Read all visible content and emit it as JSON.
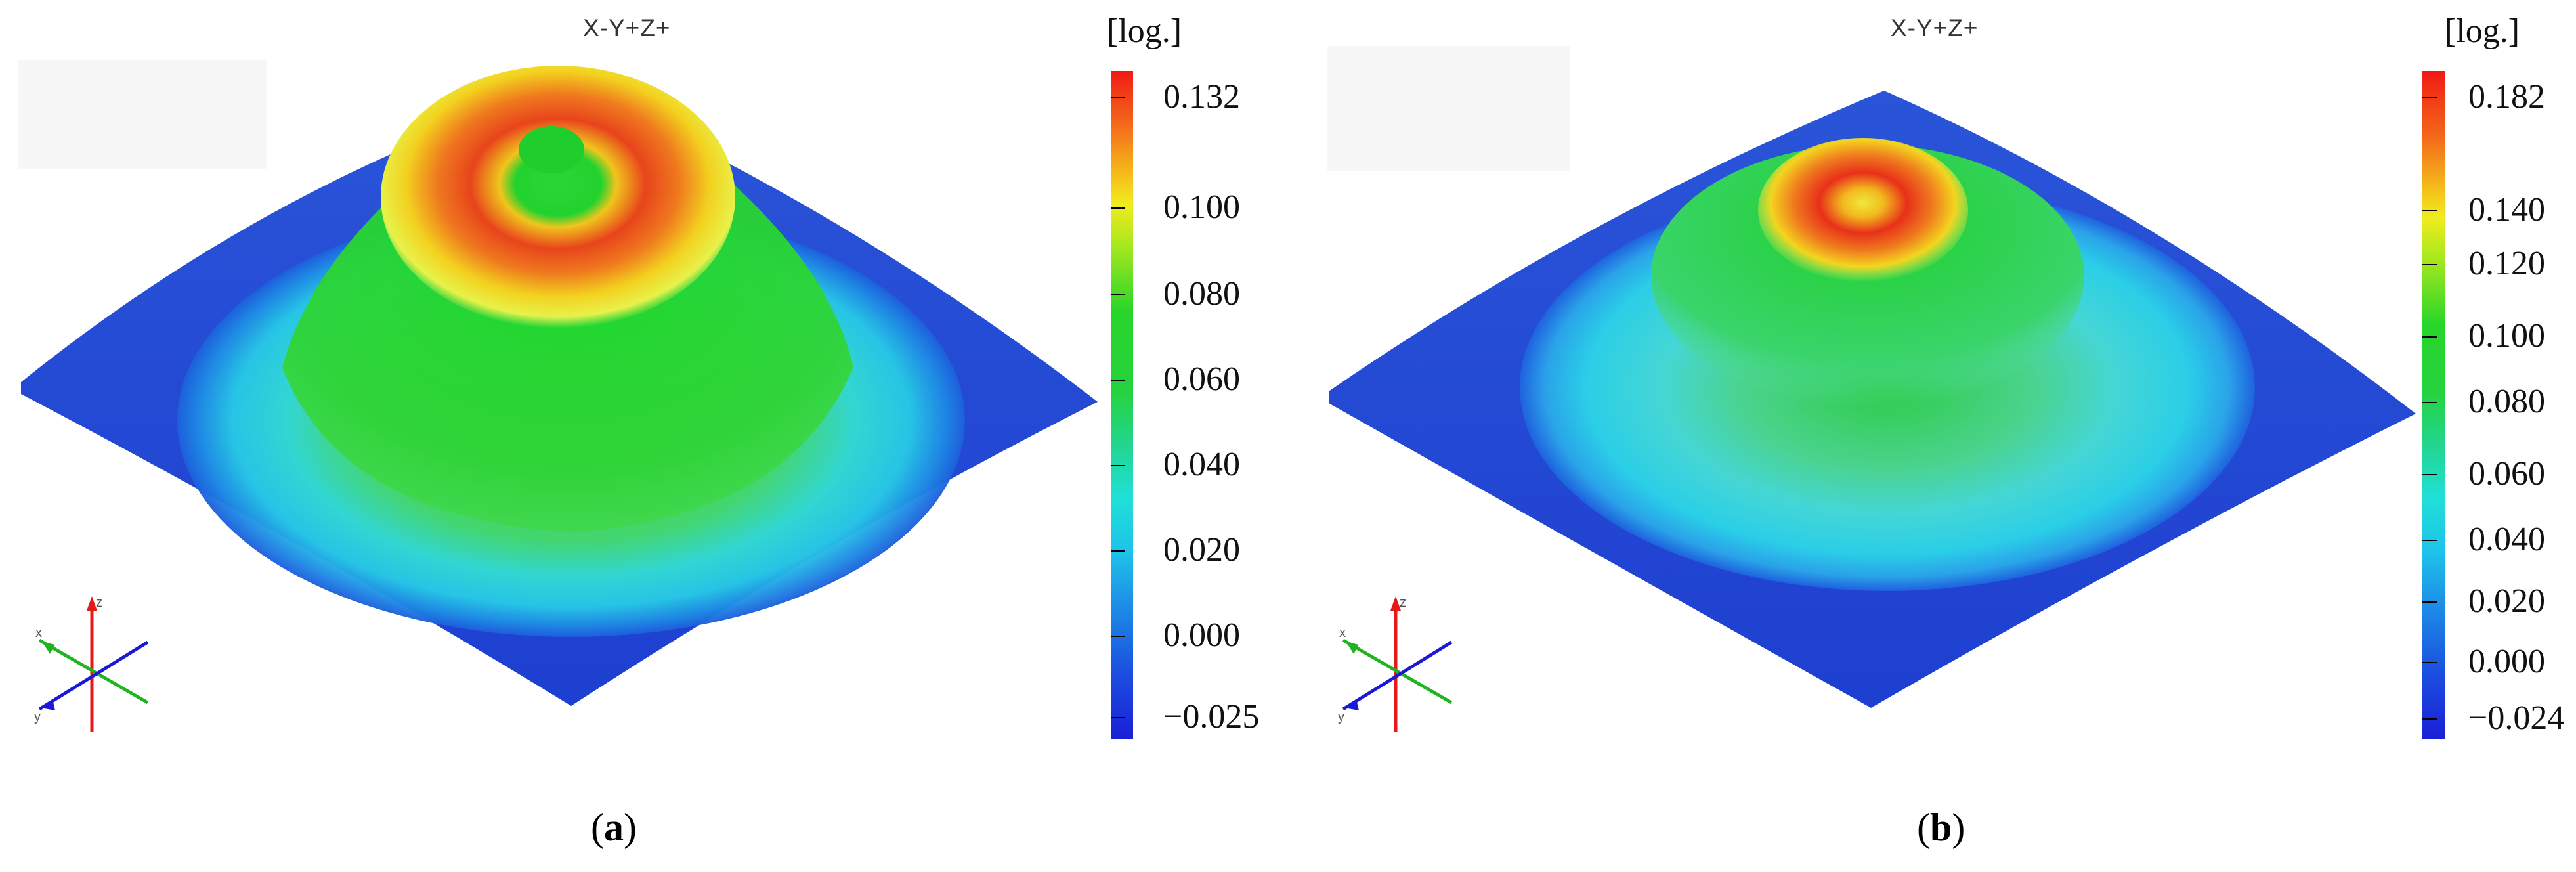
{
  "panels": [
    {
      "id": "a",
      "view_label": "X-Y+Z+",
      "unit_label": "[log.]",
      "caption_letter": "a",
      "colorbar_ticks": [
        "0.132",
        "0.100",
        "0.080",
        "0.060",
        "0.040",
        "0.020",
        "0.000",
        "−0.025"
      ],
      "colors": {
        "max": "#e8281c",
        "min": "#1a2fd6"
      }
    },
    {
      "id": "b",
      "view_label": "X-Y+Z+",
      "unit_label": "[log.]",
      "caption_letter": "b",
      "colorbar_ticks": [
        "0.182",
        "0.140",
        "0.120",
        "0.100",
        "0.080",
        "0.060",
        "0.040",
        "0.020",
        "0.000",
        "−0.024"
      ],
      "colors": {
        "max": "#e8281c",
        "min": "#1a2fd6"
      }
    }
  ],
  "triad_axes": {
    "x": "x",
    "y": "y",
    "z": "z"
  }
}
